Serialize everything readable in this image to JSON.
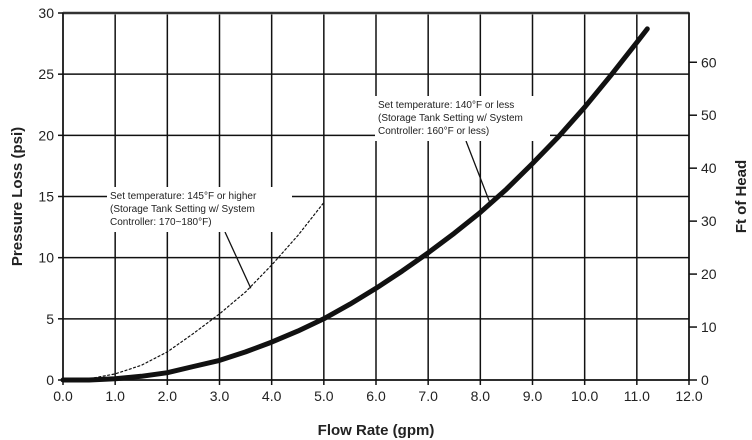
{
  "chart_data": {
    "type": "line",
    "xlabel": "Flow Rate (gpm)",
    "ylabel": "Pressure Loss (psi)",
    "y2label": "Ft of Head",
    "xlim": [
      0,
      12
    ],
    "ylim": [
      0,
      30
    ],
    "y2lim": [
      0,
      69.3
    ],
    "x_ticks": [
      "0.0",
      "1.0",
      "2.0",
      "3.0",
      "4.0",
      "5.0",
      "6.0",
      "7.0",
      "8.0",
      "9.0",
      "10.0",
      "11.0",
      "12.0"
    ],
    "y_ticks": [
      "0",
      "5",
      "10",
      "15",
      "20",
      "25",
      "30"
    ],
    "y2_ticks": [
      "0",
      "10",
      "20",
      "30",
      "40",
      "50",
      "60"
    ],
    "grid": true,
    "series": [
      {
        "name": "",
        "style": "solid",
        "x": [
          0.0,
          0.5,
          1.0,
          1.5,
          2.0,
          2.5,
          3.0,
          3.5,
          4.0,
          4.5,
          5.0,
          5.5,
          6.0,
          6.5,
          7.0,
          7.5,
          8.0,
          8.5,
          9.0,
          9.5,
          10.0,
          10.5,
          11.0,
          11.2
        ],
        "y": [
          0.0,
          0.0,
          0.1,
          0.3,
          0.6,
          1.1,
          1.6,
          2.3,
          3.1,
          4.0,
          5.0,
          6.2,
          7.5,
          8.9,
          10.4,
          12.0,
          13.7,
          15.6,
          17.7,
          19.9,
          22.3,
          24.9,
          27.6,
          28.7
        ]
      },
      {
        "name": "",
        "style": "dotted",
        "x": [
          0.0,
          0.5,
          1.0,
          1.5,
          2.0,
          2.5,
          3.0,
          3.5,
          4.0,
          4.5,
          5.0
        ],
        "y": [
          0.0,
          0.1,
          0.5,
          1.2,
          2.3,
          3.8,
          5.4,
          7.2,
          9.4,
          11.8,
          14.5
        ]
      }
    ],
    "annotations": [
      {
        "lines": [
          "Set temperature: 140°F or less",
          "(Storage Tank Setting w/ System",
          "Controller: 160°F or less)"
        ],
        "anchor_x": 8.2,
        "anchor_y": 14.3
      },
      {
        "lines": [
          "Set temperature: 145°F or higher",
          "(Storage Tank Setting w/ System",
          "Controller: 170~180°F)"
        ],
        "anchor_x": 3.6,
        "anchor_y": 7.5
      }
    ]
  }
}
